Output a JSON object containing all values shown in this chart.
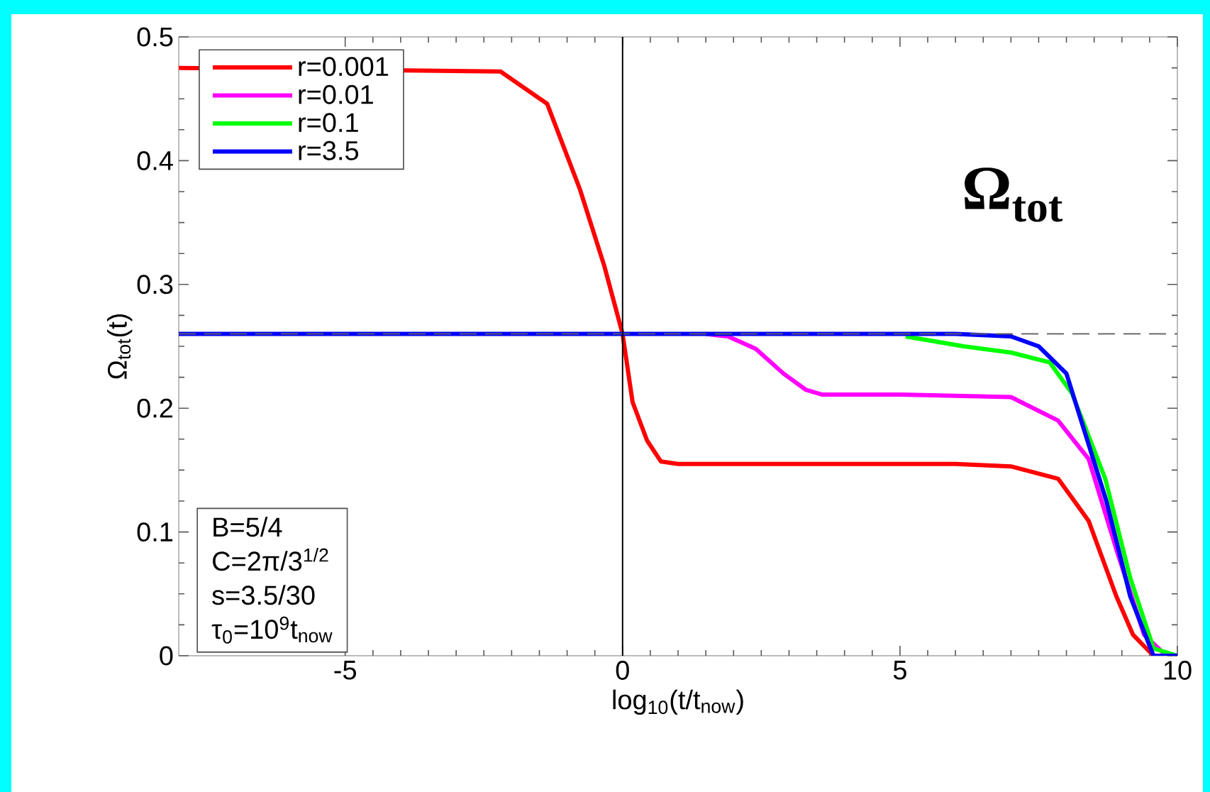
{
  "chart_data": {
    "type": "line",
    "xlabel": "log$_{10}$(t/t$_{now}$)",
    "ylabel": "Ω$_{tot}$(t)",
    "xlim": [
      -8,
      10
    ],
    "ylim": [
      0,
      0.5
    ],
    "xticks": [
      -5,
      0,
      5,
      10
    ],
    "yticks": [
      0,
      0.1,
      0.2,
      0.3,
      0.4,
      0.5
    ],
    "legend": "top left",
    "grid": false,
    "line_style": "solid",
    "marker": "none",
    "series": [
      {
        "name": "r=0.001",
        "color": "#ff0000",
        "x": [
          -8,
          -2.2,
          -1.36,
          -0.77,
          -0.33,
          0,
          0.18,
          0.44,
          0.69,
          1,
          3,
          6,
          7,
          7.85,
          8.4,
          8.9,
          9.2,
          9.57,
          10
        ],
        "values": [
          0.475,
          0.472,
          0.446,
          0.377,
          0.315,
          0.26,
          0.205,
          0.174,
          0.157,
          0.155,
          0.155,
          0.155,
          0.153,
          0.143,
          0.109,
          0.048,
          0.017,
          0,
          0
        ]
      },
      {
        "name": "r=0.01",
        "color": "#ff00ff",
        "x": [
          1.5,
          1.9,
          2.4,
          2.9,
          3.3,
          3.6,
          5,
          7,
          7.85,
          8.4,
          8.9,
          9.4,
          9.8,
          10
        ],
        "values": [
          0.26,
          0.258,
          0.248,
          0.228,
          0.215,
          0.211,
          0.211,
          0.209,
          0.19,
          0.159,
          0.086,
          0.017,
          0,
          0
        ]
      },
      {
        "name": "r=0.1",
        "color": "#00ff00",
        "x": [
          5.1,
          6.15,
          7,
          7.7,
          8.1,
          8.7,
          9.15,
          9.57,
          10
        ],
        "values": [
          0.258,
          0.25,
          0.245,
          0.237,
          0.212,
          0.143,
          0.063,
          0.006,
          0
        ]
      },
      {
        "name": "r=3.5",
        "color": "#0000ff",
        "x": [
          -8,
          0,
          6,
          7,
          7.5,
          8,
          8.72,
          9.15,
          9.57,
          10
        ],
        "values": [
          0.26,
          0.26,
          0.26,
          0.258,
          0.25,
          0.228,
          0.125,
          0.048,
          0,
          0
        ]
      }
    ],
    "ref_lines": [
      {
        "axis": "y",
        "value": 0.26,
        "color": "#606060",
        "line_style": "dashed"
      },
      {
        "axis": "x",
        "value": 0,
        "color": "#000000",
        "line_style": "solid"
      }
    ],
    "annotations": [
      "**Ω$_{tot}$**",
      "B=5/4",
      "C=2π/3$^{1/2}$",
      "s=3.5/30",
      "τ$_{0}$=10$^{9}$t$_{now}$"
    ]
  }
}
